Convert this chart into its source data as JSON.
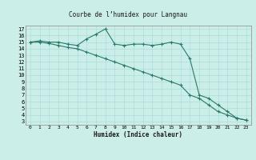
{
  "title": "Courbe de l’humidex pour Langnau",
  "xlabel": "Humidex (Indice chaleur)",
  "background_color": "#cceee8",
  "grid_color": "#aadddd",
  "line_color": "#2a7a6a",
  "xlim": [
    -0.5,
    23.5
  ],
  "ylim": [
    2.5,
    17.5
  ],
  "xtick_labels": [
    "0",
    "1",
    "2",
    "3",
    "4",
    "5",
    "6",
    "7",
    "8",
    "9",
    "10",
    "11",
    "12",
    "13",
    "14",
    "15",
    "16",
    "17",
    "18",
    "19",
    "20",
    "21",
    "22",
    "23"
  ],
  "ytick_values": [
    3,
    4,
    5,
    6,
    7,
    8,
    9,
    10,
    11,
    12,
    13,
    14,
    15,
    16,
    17
  ],
  "series1_x": [
    0,
    1,
    2,
    3,
    4,
    5,
    6,
    7,
    8,
    9,
    10,
    11,
    12,
    13,
    14,
    15,
    16,
    17,
    18,
    19,
    20,
    21,
    22,
    23
  ],
  "series1_y": [
    15.0,
    15.2,
    15.0,
    15.0,
    14.7,
    14.5,
    15.5,
    16.2,
    17.0,
    14.7,
    14.5,
    14.7,
    14.7,
    14.5,
    14.7,
    15.0,
    14.7,
    12.5,
    7.0,
    6.5,
    5.5,
    4.5,
    3.5,
    3.2
  ],
  "series2_x": [
    0,
    1,
    2,
    3,
    4,
    5,
    6,
    7,
    8,
    9,
    10,
    11,
    12,
    13,
    14,
    15,
    16,
    17,
    18,
    19,
    20,
    21,
    22,
    23
  ],
  "series2_y": [
    15.0,
    15.0,
    14.8,
    14.5,
    14.2,
    14.0,
    13.5,
    13.0,
    12.5,
    12.0,
    11.5,
    11.0,
    10.5,
    10.0,
    9.5,
    9.0,
    8.5,
    7.0,
    6.5,
    5.5,
    4.5,
    4.0,
    3.5,
    3.2
  ]
}
